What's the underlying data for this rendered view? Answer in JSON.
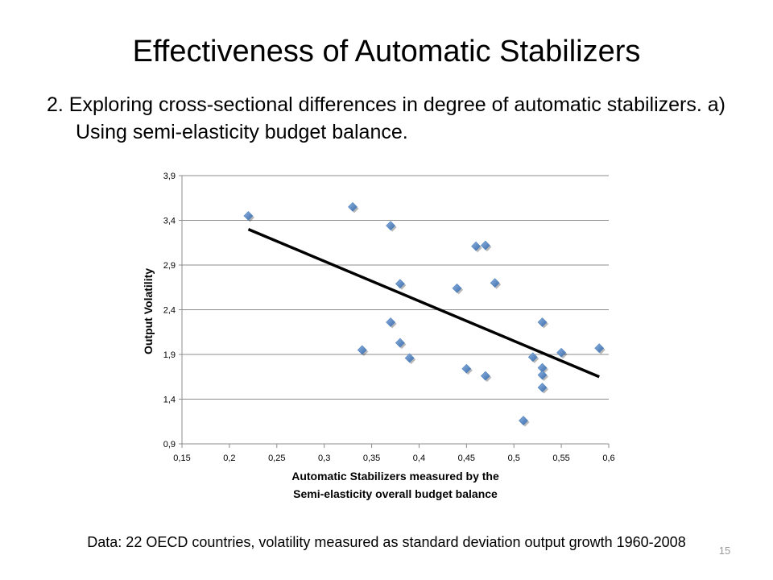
{
  "slide": {
    "title": "Effectiveness of Automatic Stabilizers",
    "subtitle": "2. Exploring cross-sectional differences in degree of automatic stabilizers. a) Using semi-elasticity budget balance.",
    "footnote": "Data: 22 OECD countries, volatility measured as standard deviation output growth 1960-2008",
    "slide_number": "15"
  },
  "chart_data": {
    "type": "scatter",
    "title": "",
    "xlabel": "Automatic Stabilizers measured by the Semi-elasticity overall budget balance",
    "xlabel_lines": [
      "Automatic Stabilizers measured by the",
      "Semi-elasticity overall budget balance"
    ],
    "ylabel": "Output Volatility",
    "xlim": [
      0.15,
      0.6
    ],
    "ylim": [
      0.9,
      3.9
    ],
    "x_ticks": [
      0.15,
      0.2,
      0.25,
      0.3,
      0.35,
      0.4,
      0.45,
      0.5,
      0.55,
      0.6
    ],
    "x_tick_labels": [
      "0,15",
      "0,2",
      "0,25",
      "0,3",
      "0,35",
      "0,4",
      "0,45",
      "0,5",
      "0,55",
      "0,6"
    ],
    "y_ticks": [
      0.9,
      1.4,
      1.9,
      2.4,
      2.9,
      3.4,
      3.9
    ],
    "y_tick_labels": [
      "0,9",
      "1,4",
      "1,9",
      "2,4",
      "2,9",
      "3,4",
      "3,9"
    ],
    "grid": "horizontal",
    "marker_color": "#4F81BD",
    "trendline_color": "#000000",
    "points": [
      {
        "x": 0.22,
        "y": 3.45
      },
      {
        "x": 0.33,
        "y": 3.55
      },
      {
        "x": 0.34,
        "y": 1.95
      },
      {
        "x": 0.37,
        "y": 3.34
      },
      {
        "x": 0.37,
        "y": 2.26
      },
      {
        "x": 0.38,
        "y": 2.69
      },
      {
        "x": 0.38,
        "y": 2.03
      },
      {
        "x": 0.39,
        "y": 1.86
      },
      {
        "x": 0.44,
        "y": 2.64
      },
      {
        "x": 0.45,
        "y": 1.74
      },
      {
        "x": 0.46,
        "y": 3.11
      },
      {
        "x": 0.47,
        "y": 3.12
      },
      {
        "x": 0.47,
        "y": 1.66
      },
      {
        "x": 0.48,
        "y": 2.7
      },
      {
        "x": 0.51,
        "y": 1.16
      },
      {
        "x": 0.52,
        "y": 1.87
      },
      {
        "x": 0.53,
        "y": 2.26
      },
      {
        "x": 0.53,
        "y": 1.75
      },
      {
        "x": 0.53,
        "y": 1.67
      },
      {
        "x": 0.53,
        "y": 1.53
      },
      {
        "x": 0.55,
        "y": 1.92
      },
      {
        "x": 0.59,
        "y": 1.97
      }
    ],
    "trendline": {
      "type": "linear",
      "start": {
        "x": 0.22,
        "y": 3.3
      },
      "end": {
        "x": 0.59,
        "y": 1.65
      }
    }
  }
}
